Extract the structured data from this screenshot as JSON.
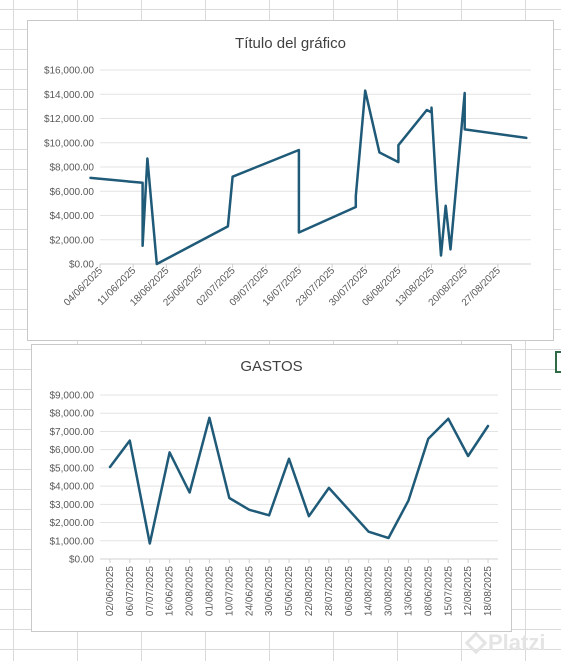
{
  "chart_data": [
    {
      "type": "line",
      "title": "Título del gráfico",
      "xlabel": "",
      "ylabel": "",
      "x_type": "date",
      "ylim": [
        0,
        16000
      ],
      "yticks": [
        0,
        2000,
        4000,
        6000,
        8000,
        10000,
        12000,
        14000,
        16000
      ],
      "ytick_labels": [
        "$0.00",
        "$2,000.00",
        "$4,000.00",
        "$6,000.00",
        "$8,000.00",
        "$10,000.00",
        "$12,000.00",
        "$14,000.00",
        "$16,000.00"
      ],
      "xlim": [
        "2025-06-04",
        "2025-09-03"
      ],
      "xticks": [
        "2025-06-04",
        "2025-06-11",
        "2025-06-18",
        "2025-06-25",
        "2025-07-02",
        "2025-07-09",
        "2025-07-16",
        "2025-07-23",
        "2025-07-30",
        "2025-08-06",
        "2025-08-13",
        "2025-08-20",
        "2025-08-27"
      ],
      "xtick_labels": [
        "04/06/2025",
        "11/06/2025",
        "18/06/2025",
        "25/06/2025",
        "02/07/2025",
        "09/07/2025",
        "16/07/2025",
        "23/07/2025",
        "30/07/2025",
        "06/08/2025",
        "13/08/2025",
        "20/08/2025",
        "27/08/2025"
      ],
      "grid": true,
      "legend": "none",
      "color": "#1f5a78",
      "series": [
        {
          "x": [
            "2025-06-02",
            "2025-06-13",
            "2025-06-13",
            "2025-06-14",
            "2025-06-16",
            "2025-07-01",
            "2025-07-02",
            "2025-07-16",
            "2025-07-16",
            "2025-07-28",
            "2025-07-28",
            "2025-07-30",
            "2025-08-02",
            "2025-08-06",
            "2025-08-06",
            "2025-08-12",
            "2025-08-13",
            "2025-08-13",
            "2025-08-14",
            "2025-08-15",
            "2025-08-16",
            "2025-08-17",
            "2025-08-20",
            "2025-08-20",
            "2025-09-02"
          ],
          "values": [
            7100,
            6700,
            1500,
            8700,
            0,
            3100,
            7200,
            9400,
            2600,
            4700,
            5600,
            14300,
            9200,
            8400,
            9800,
            12700,
            12500,
            12900,
            6200,
            700,
            4800,
            1200,
            14100,
            11100,
            10400
          ]
        }
      ]
    },
    {
      "type": "line",
      "title": "GASTOS",
      "xlabel": "",
      "ylabel": "",
      "ylim": [
        0,
        9000
      ],
      "yticks": [
        0,
        1000,
        2000,
        3000,
        4000,
        5000,
        6000,
        7000,
        8000,
        9000
      ],
      "ytick_labels": [
        "$0.00",
        "$1,000.00",
        "$2,000.00",
        "$3,000.00",
        "$4,000.00",
        "$5,000.00",
        "$6,000.00",
        "$7,000.00",
        "$8,000.00",
        "$9,000.00"
      ],
      "categories": [
        "02/06/2025",
        "06/07/2025",
        "07/07/2025",
        "16/06/2025",
        "20/08/2025",
        "01/08/2025",
        "10/07/2025",
        "24/06/2025",
        "30/06/2025",
        "05/06/2025",
        "22/08/2025",
        "28/07/2025",
        "06/08/2025",
        "14/08/2025",
        "30/08/2025",
        "13/06/2025",
        "08/06/2025",
        "15/07/2025",
        "12/08/2025",
        "18/08/2025"
      ],
      "grid": true,
      "legend": "none",
      "color": "#1f5a78",
      "series": [
        {
          "values": [
            5050,
            6500,
            850,
            5850,
            3650,
            7750,
            3350,
            2700,
            2400,
            5500,
            2350,
            3900,
            2700,
            1500,
            1150,
            3200,
            6600,
            7700,
            5650,
            7300
          ]
        }
      ]
    }
  ],
  "watermark": {
    "text": "Platzi",
    "icon": "platzi-logo-icon"
  }
}
